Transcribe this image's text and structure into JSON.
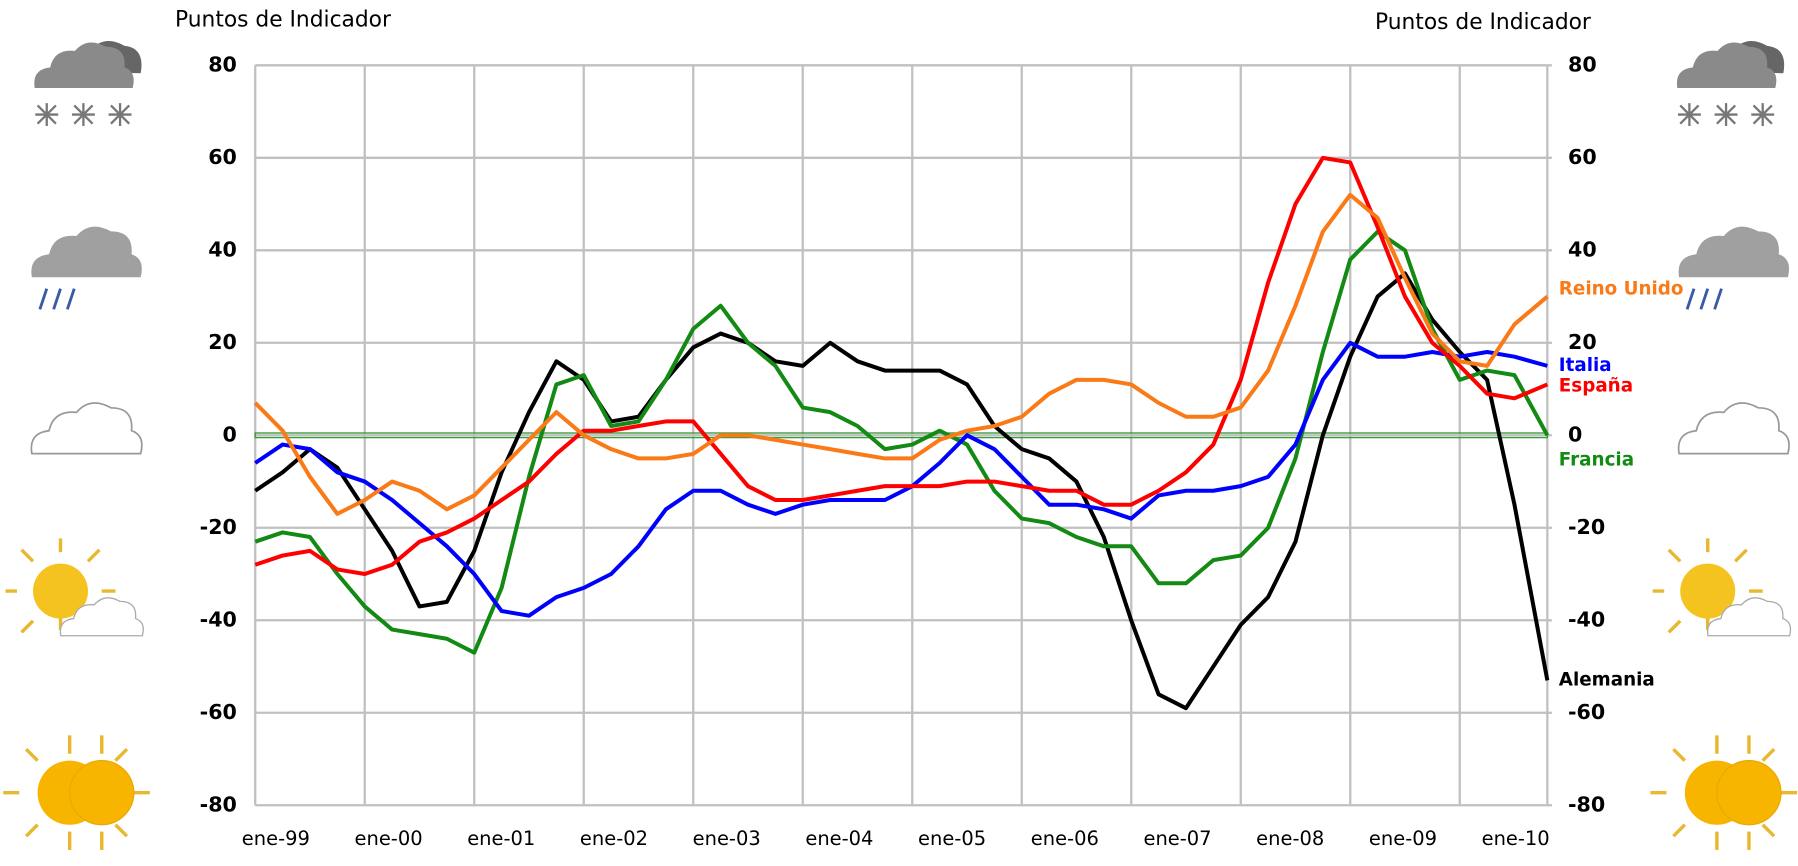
{
  "chart_data": {
    "type": "line",
    "y_label": "Puntos de Indicador",
    "y2_label": "Puntos de Indicador",
    "x": [
      1999,
      1999.25,
      1999.5,
      1999.75,
      2000,
      2000.25,
      2000.5,
      2000.75,
      2001,
      2001.25,
      2001.5,
      2001.75,
      2002,
      2002.25,
      2002.5,
      2002.75,
      2003,
      2003.25,
      2003.5,
      2003.75,
      2004,
      2004.25,
      2004.5,
      2004.75,
      2005,
      2005.25,
      2005.5,
      2005.75,
      2006,
      2006.25,
      2006.5,
      2006.75,
      2007,
      2007.25,
      2007.5,
      2007.75,
      2008,
      2008.25,
      2008.5,
      2008.75,
      2009,
      2009.25,
      2009.5,
      2009.75,
      2010,
      2010.25,
      2010.5,
      2010.8
    ],
    "xlim": [
      1999,
      2010.8
    ],
    "xticks": [
      {
        "value": 1999,
        "label": "ene-99"
      },
      {
        "value": 2000,
        "label": "ene-00"
      },
      {
        "value": 2001,
        "label": "ene-01"
      },
      {
        "value": 2002,
        "label": "ene-02"
      },
      {
        "value": 2003,
        "label": "ene-03"
      },
      {
        "value": 2004,
        "label": "ene-04"
      },
      {
        "value": 2005,
        "label": "ene-05"
      },
      {
        "value": 2006,
        "label": "ene-06"
      },
      {
        "value": 2007,
        "label": "ene-07"
      },
      {
        "value": 2008,
        "label": "ene-08"
      },
      {
        "value": 2009,
        "label": "ene-09"
      },
      {
        "value": 2010,
        "label": "ene-10"
      }
    ],
    "ylim": [
      -80,
      80
    ],
    "yticks": [
      -80,
      -60,
      -40,
      -20,
      0,
      20,
      40,
      60,
      80
    ],
    "y2lim": [
      -80,
      80
    ],
    "y2ticks": [
      -80,
      -60,
      -40,
      -20,
      0,
      20,
      40,
      60,
      80
    ],
    "grid": true,
    "series": [
      {
        "name": "Alemania",
        "color": "#000000",
        "values": [
          -12,
          -8,
          -3,
          -7,
          -16,
          -25,
          -37,
          -36,
          -25,
          -8,
          5,
          16,
          12,
          3,
          4,
          12,
          19,
          22,
          20,
          16,
          15,
          20,
          16,
          14,
          14,
          14,
          11,
          2,
          -3,
          -5,
          -10,
          -22,
          -40,
          -56,
          -59,
          -50,
          -41,
          -35,
          -23,
          0,
          17,
          30,
          35,
          25,
          18,
          12,
          -15,
          -53
        ]
      },
      {
        "name": "Francia",
        "color": "#138a13",
        "values": [
          -23,
          -21,
          -22,
          -30,
          -37,
          -42,
          -43,
          -44,
          -47,
          -33,
          -9,
          11,
          13,
          2,
          3,
          12,
          23,
          28,
          20,
          15,
          6,
          5,
          2,
          -3,
          -2,
          1,
          -2,
          -12,
          -18,
          -19,
          -22,
          -24,
          -24,
          -32,
          -32,
          -27,
          -26,
          -20,
          -5,
          18,
          38,
          44,
          40,
          23,
          12,
          14,
          13,
          0
        ]
      },
      {
        "name": "Italia",
        "color": "#0000ff",
        "values": [
          -6,
          -2,
          -3,
          -8,
          -10,
          -14,
          -19,
          -24,
          -30,
          -38,
          -39,
          -35,
          -33,
          -30,
          -24,
          -16,
          -12,
          -12,
          -15,
          -17,
          -15,
          -14,
          -14,
          -14,
          -11,
          -6,
          0,
          -3,
          -9,
          -15,
          -15,
          -16,
          -18,
          -13,
          -12,
          -12,
          -11,
          -9,
          -2,
          12,
          20,
          17,
          17,
          18,
          17,
          18,
          17,
          15
        ]
      },
      {
        "name": "España",
        "color": "#ff0000",
        "values": [
          -28,
          -26,
          -25,
          -29,
          -30,
          -28,
          -23,
          -21,
          -18,
          -14,
          -10,
          -4,
          1,
          1,
          2,
          3,
          3,
          -4,
          -11,
          -14,
          -14,
          -13,
          -12,
          -11,
          -11,
          -11,
          -10,
          -10,
          -11,
          -12,
          -12,
          -15,
          -15,
          -12,
          -8,
          -2,
          12,
          33,
          50,
          60,
          59,
          45,
          30,
          20,
          15,
          9,
          8,
          11
        ]
      },
      {
        "name": "Reino Unido",
        "color": "#f97a17",
        "values": [
          7,
          1,
          -9,
          -17,
          -14,
          -10,
          -12,
          -16,
          -13,
          -7,
          -1,
          5,
          0,
          -3,
          -5,
          -5,
          -4,
          0,
          0,
          -1,
          -2,
          -3,
          -4,
          -5,
          -5,
          -1,
          1,
          2,
          4,
          9,
          12,
          12,
          11,
          7,
          4,
          4,
          6,
          14,
          28,
          44,
          52,
          47,
          34,
          22,
          16,
          15,
          24,
          30
        ]
      }
    ]
  }
}
